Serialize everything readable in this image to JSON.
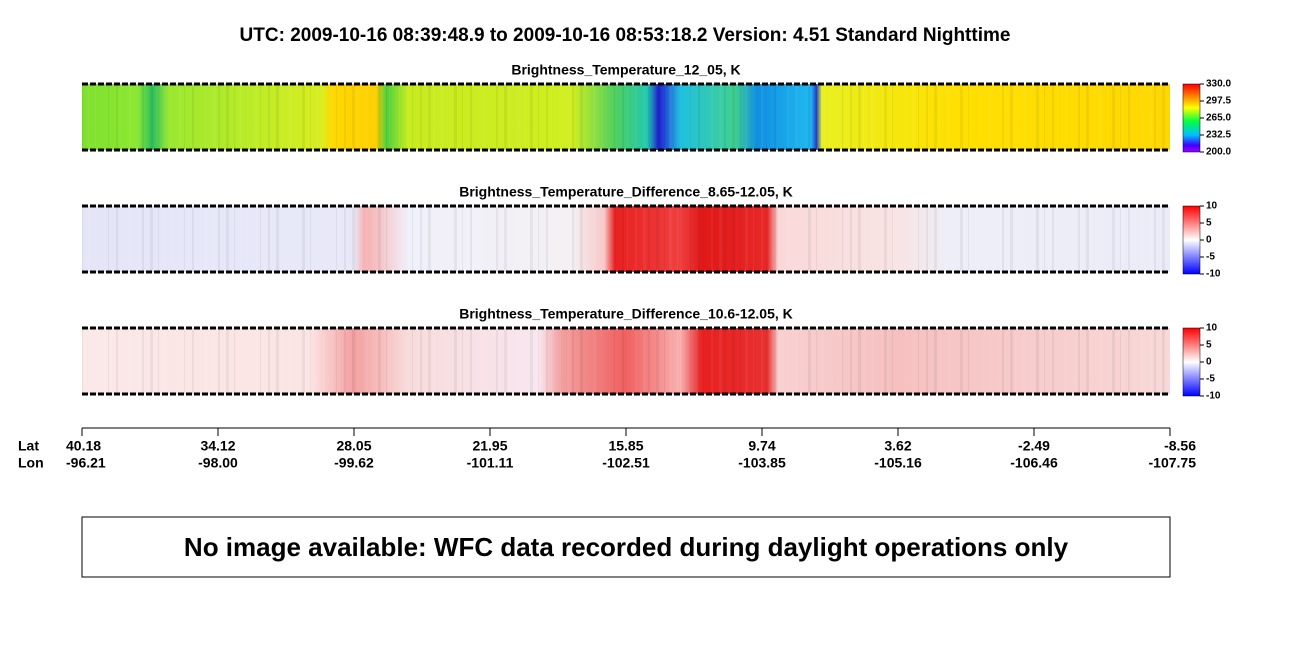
{
  "header": {
    "title": "UTC:  2009-10-16   08:39:48.9  to  2009-10-16   08:53:18.2    Version: 4.51  Standard Nighttime"
  },
  "panels": [
    {
      "title": "Brightness_Temperature_12_05, K",
      "colorbar_ticks": [
        {
          "value": 330,
          "label": "330.0"
        },
        {
          "value": 297.5,
          "label": "297.5"
        },
        {
          "value": 265,
          "label": "265.0"
        },
        {
          "value": 232.5,
          "label": "232.5"
        },
        {
          "value": 200,
          "label": "200.0"
        }
      ]
    },
    {
      "title": "Brightness_Temperature_Difference_8.65-12.05, K",
      "colorbar_ticks": [
        10,
        5,
        0,
        -5,
        -10
      ]
    },
    {
      "title": "Brightness_Temperature_Difference_10.6-12.05, K",
      "colorbar_ticks": [
        10,
        5,
        0,
        -5,
        -10
      ]
    }
  ],
  "x_axis": {
    "labels": [
      "Lat",
      "Lon"
    ],
    "ticks": [
      {
        "lat": "40.18",
        "lon": "-96.21"
      },
      {
        "lat": "34.12",
        "lon": "-98.00"
      },
      {
        "lat": "28.05",
        "lon": "-99.62"
      },
      {
        "lat": "21.95",
        "lon": "-101.11"
      },
      {
        "lat": "15.85",
        "lon": "-102.51"
      },
      {
        "lat": "9.74",
        "lon": "-103.85"
      },
      {
        "lat": "3.62",
        "lon": "-105.16"
      },
      {
        "lat": "-2.49",
        "lon": "-106.46"
      },
      {
        "lat": "-8.56",
        "lon": "-107.75"
      }
    ]
  },
  "message": "No image available: WFC data recorded during daylight operations only"
}
